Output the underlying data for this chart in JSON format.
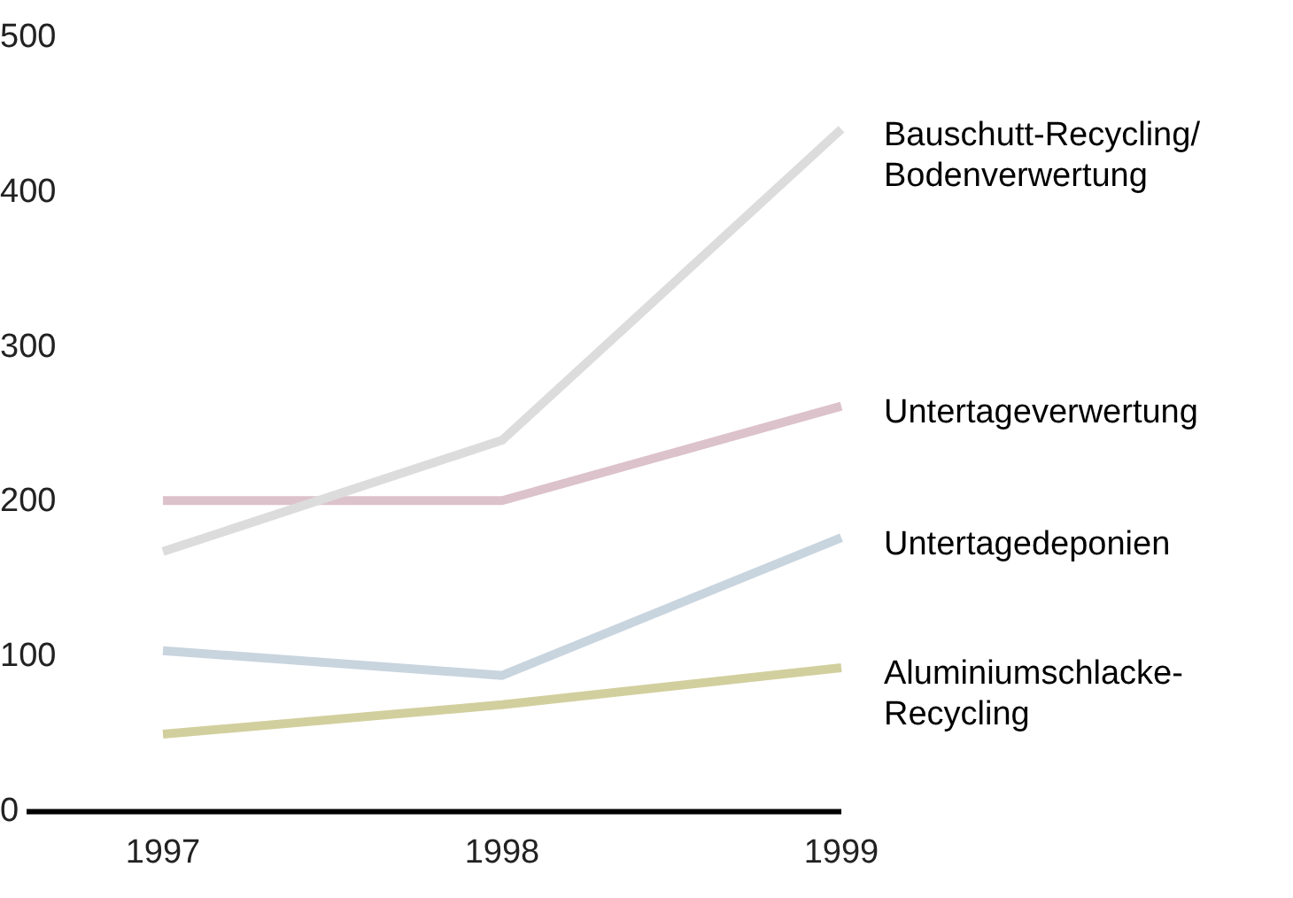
{
  "chart_data": {
    "type": "line",
    "categories": [
      "1997",
      "1998",
      "1999"
    ],
    "ylim": [
      0,
      500
    ],
    "yticks": [
      0,
      100,
      200,
      300,
      400,
      500
    ],
    "grid": false,
    "legend": false,
    "marker": "none",
    "line_style": "solid",
    "series": [
      {
        "name": "Bauschutt-Recycling/Bodenverwertung",
        "color": "#dcdcdc",
        "values": [
          168,
          240,
          441
        ]
      },
      {
        "name": "Untertageverwertung",
        "color": "#dcc2ca",
        "values": [
          201,
          201,
          262
        ]
      },
      {
        "name": "Untertagedeponien",
        "color": "#c8d4de",
        "values": [
          104,
          88,
          177
        ]
      },
      {
        "name": "Aluminiumschlacke-Recycling",
        "color": "#d2cf9e",
        "values": [
          50,
          69,
          93
        ]
      }
    ]
  }
}
